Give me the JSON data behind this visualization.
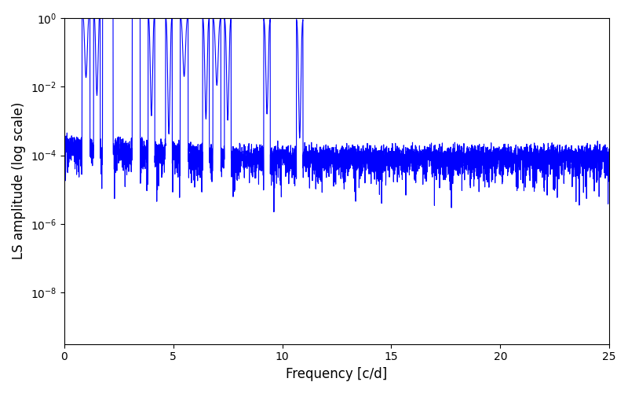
{
  "title": "",
  "xlabel": "Frequency [c/d]",
  "ylabel": "LS amplitude (log scale)",
  "xlim": [
    0,
    25
  ],
  "ylim_log": [
    -9.5,
    0
  ],
  "line_color": "#0000ff",
  "line_width": 0.8,
  "figsize": [
    8.0,
    5.0
  ],
  "dpi": 100,
  "seed": 12345,
  "n_points": 5000,
  "background_color": "#ffffff",
  "yticks_log": [
    0,
    -2,
    -4,
    -6,
    -8
  ],
  "xticks": [
    0,
    5,
    10,
    15,
    20,
    25
  ],
  "noise_base_log": -4.0,
  "noise_std_log": 0.6
}
